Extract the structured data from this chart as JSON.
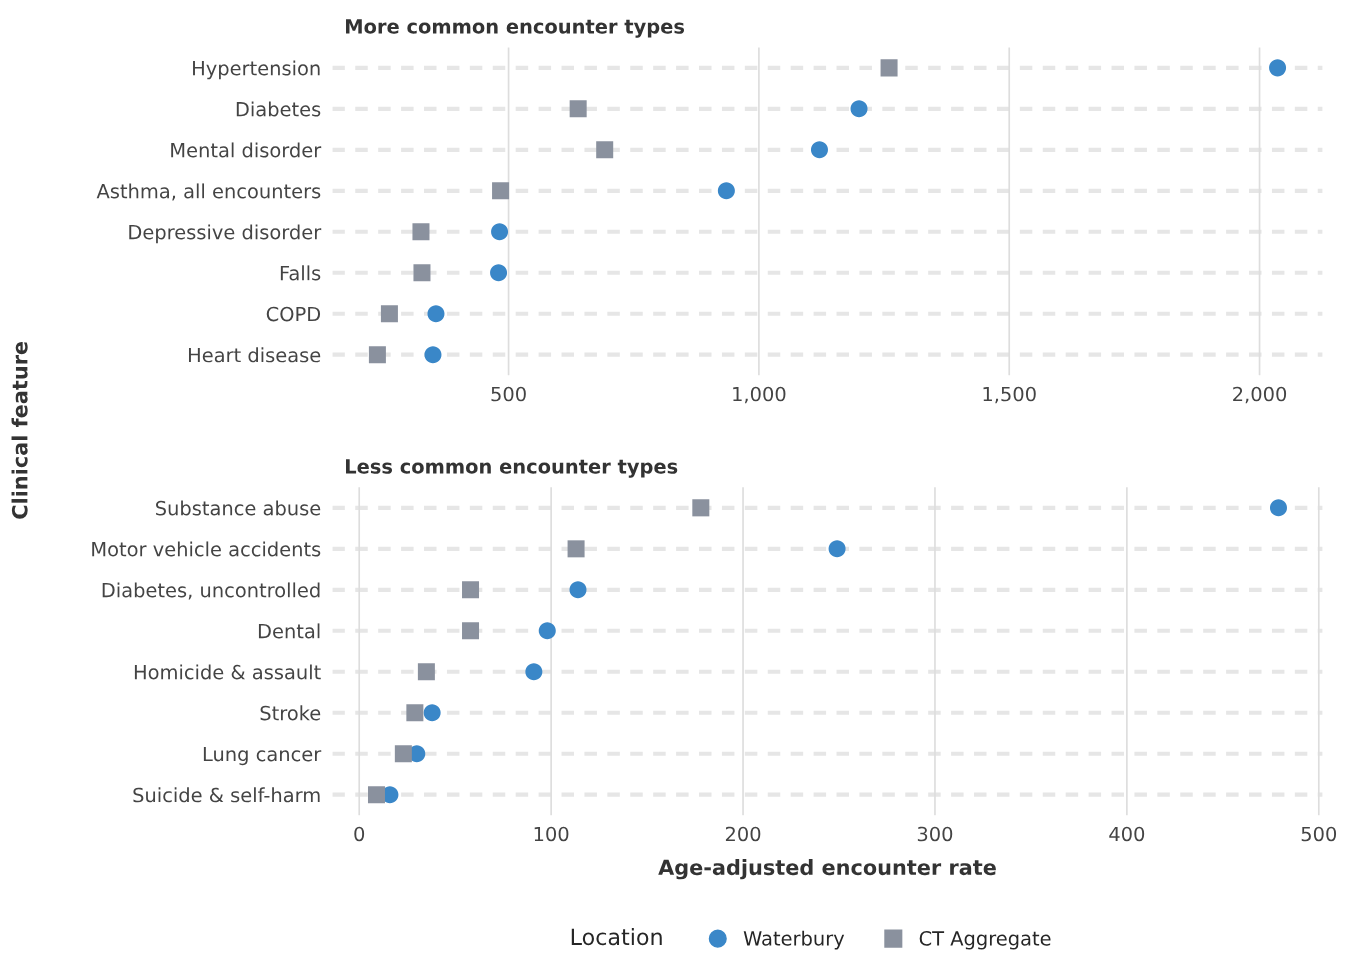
{
  "chart_data": [
    {
      "type": "scatter",
      "title": "More common encounter types",
      "ylabel": "Clinical feature",
      "categories": [
        "Hypertension",
        "Diabetes",
        "Mental disorder",
        "Asthma, all encounters",
        "Depressive disorder",
        "Falls",
        "COPD",
        "Heart disease"
      ],
      "orientation": "horizontal",
      "series": [
        {
          "name": "Waterbury",
          "color": "#3a87c8",
          "marker": "circle",
          "values": [
            2036,
            1200,
            1121,
            935,
            482,
            480,
            355,
            349
          ]
        },
        {
          "name": "CT Aggregate",
          "color": "#8a919e",
          "marker": "square",
          "values": [
            1260,
            639,
            692,
            484,
            325,
            327,
            262,
            238
          ]
        }
      ],
      "xlim": [
        148,
        2126
      ],
      "xticks": [
        {
          "value": 500,
          "label": "500"
        },
        {
          "value": 1000,
          "label": "1,000"
        },
        {
          "value": 1500,
          "label": "1,500"
        },
        {
          "value": 2000,
          "label": "2,000"
        }
      ],
      "grid": true,
      "legend": "bottom",
      "legend_title": "Location"
    },
    {
      "type": "scatter",
      "title": "Less common encounter types",
      "xlabel": "Age-adjusted encounter rate",
      "categories": [
        "Substance abuse",
        "Motor vehicle accidents",
        "Diabetes, uncontrolled",
        "Dental",
        "Homicide & assault",
        "Stroke",
        "Lung cancer",
        "Suicide & self-harm"
      ],
      "orientation": "horizontal",
      "series": [
        {
          "color": "#3a87c8",
          "marker": "circle",
          "values": [
            479,
            249,
            114,
            98,
            91,
            38,
            30,
            16
          ]
        },
        {
          "color": "#8a919e",
          "marker": "square",
          "values": [
            178,
            113,
            58,
            58,
            35,
            29,
            23,
            9
          ]
        }
      ],
      "xlim": [
        -14,
        502
      ],
      "xticks": [
        0,
        100,
        200,
        300,
        400,
        500
      ],
      "grid": true
    }
  ]
}
